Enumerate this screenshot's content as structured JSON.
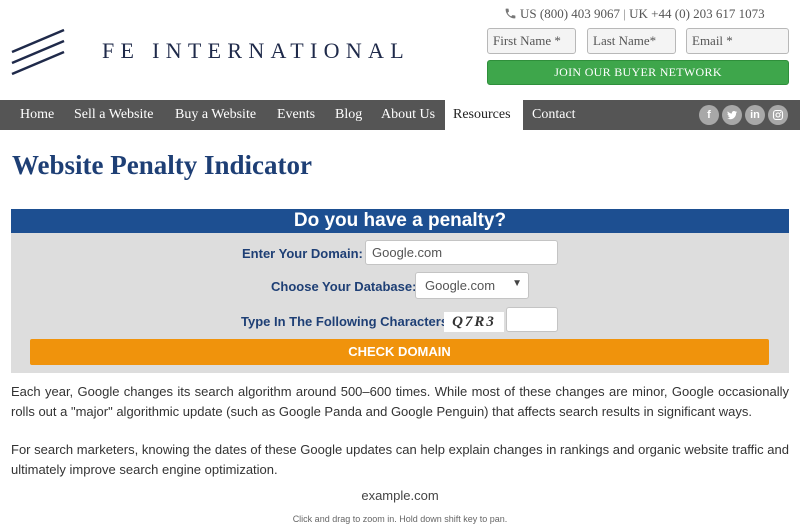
{
  "header": {
    "logo_text": "FE INTERNATIONAL",
    "phone_us": "US (800) 403 9067",
    "phone_sep": "|",
    "phone_uk": "UK +44 (0) 203 617 1073",
    "form": {
      "first_name_placeholder": "First Name *",
      "last_name_placeholder": "Last Name*",
      "email_placeholder": "Email *",
      "join_label": "JOIN OUR BUYER NETWORK"
    }
  },
  "nav": {
    "items": [
      {
        "label": "Home"
      },
      {
        "label": "Sell a Website"
      },
      {
        "label": "Buy a Website"
      },
      {
        "label": "Events"
      },
      {
        "label": "Blog"
      },
      {
        "label": "About Us"
      },
      {
        "label": "Resources",
        "active": true
      },
      {
        "label": "Contact"
      }
    ],
    "social_icons": [
      "facebook-icon",
      "twitter-icon",
      "linkedin-icon",
      "instagram-icon"
    ]
  },
  "page_title": "Website Penalty Indicator",
  "penalty_form": {
    "heading": "Do you have a penalty?",
    "domain_label": "Enter Your Domain:",
    "domain_placeholder": "Google.com",
    "database_label": "Choose Your Database:",
    "database_selected": "Google.com",
    "captcha_label": "Type In The Following Characters:",
    "captcha_text": "Q7R3",
    "captcha_value": "",
    "submit_label": "CHECK DOMAIN"
  },
  "content": {
    "paragraph_1": "Each year, Google changes its search algorithm around 500–600 times. While most of these changes are minor, Google occasionally rolls out a \"major\" algorithmic update (such as Google Panda and Google Penguin) that affects search results in significant ways.",
    "paragraph_2": "For search marketers, knowing the dates of these Google updates can help explain changes in rankings and organic website traffic and ultimately improve search engine optimization.",
    "chart_title": "example.com",
    "chart_hint": "Click and drag to zoom in. Hold down shift key to pan."
  },
  "colors": {
    "brand_navy": "#1e3f75",
    "nav_bg": "#555555",
    "join_green": "#3ea64b",
    "submit_orange": "#f0930c",
    "box_header": "#1d4f91"
  }
}
